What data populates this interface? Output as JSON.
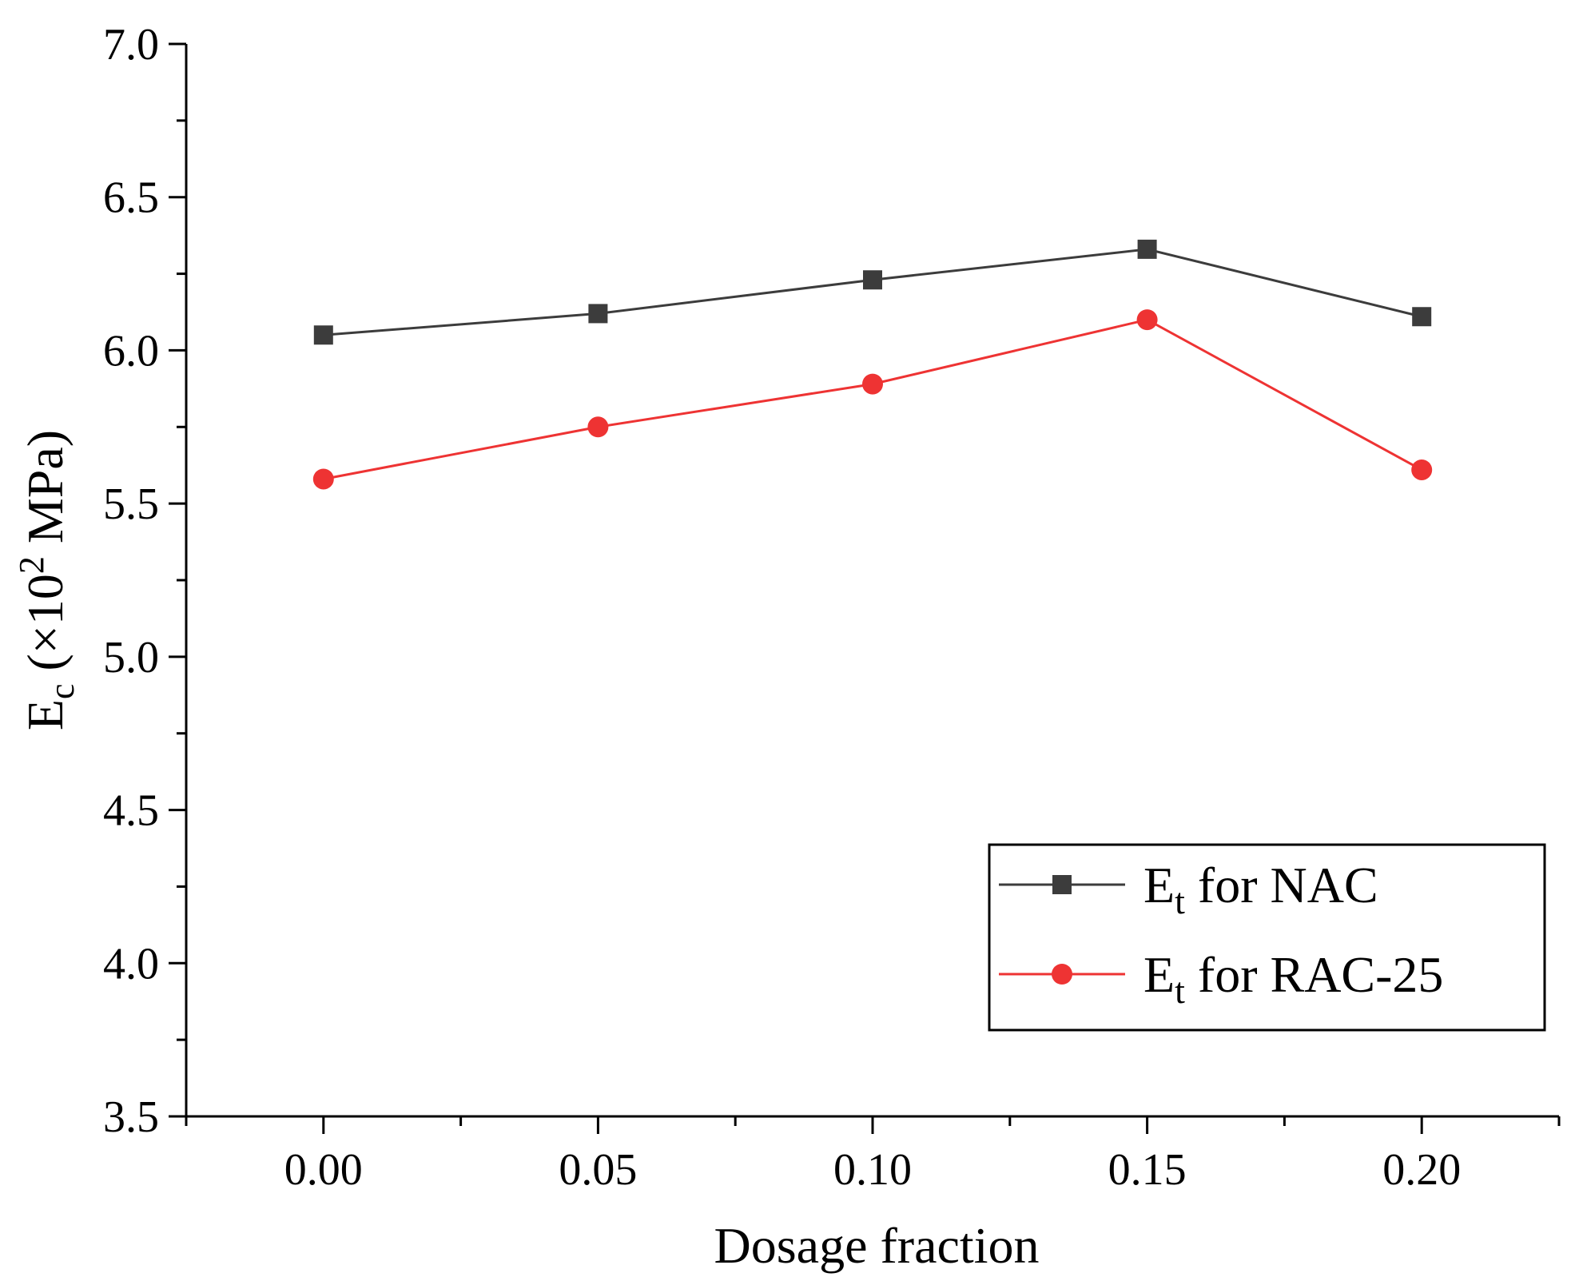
{
  "chart_data": {
    "type": "line",
    "title": "",
    "xlabel": "Dosage fraction",
    "ylabel": {
      "base": "E",
      "sub": "c",
      "prefix": " (×10",
      "sup": "2",
      "suffix": " MPa)"
    },
    "x": [
      0.0,
      0.05,
      0.1,
      0.15,
      0.2
    ],
    "x_tick_labels": [
      "0.00",
      "0.05",
      "0.10",
      "0.15",
      "0.20"
    ],
    "y_tick_labels": [
      "3.5",
      "4.0",
      "4.5",
      "5.0",
      "5.5",
      "6.0",
      "6.5",
      "7.0"
    ],
    "xlim": [
      -0.025,
      0.225
    ],
    "ylim": [
      3.5,
      7.0
    ],
    "grid": false,
    "legend_position": "bottom-right",
    "series": [
      {
        "name": "E_t for NAC",
        "legend": {
          "base": "E",
          "sub": "t",
          "text": " for  NAC"
        },
        "color": "#3c3c3c",
        "marker": "square",
        "values": [
          6.05,
          6.12,
          6.23,
          6.33,
          6.11
        ]
      },
      {
        "name": "E_t for RAC-25",
        "legend": {
          "base": "E",
          "sub": "t",
          "text": " for  RAC-25"
        },
        "color": "#ee3333",
        "marker": "circle",
        "values": [
          5.58,
          5.75,
          5.89,
          6.1,
          5.61
        ]
      }
    ]
  }
}
